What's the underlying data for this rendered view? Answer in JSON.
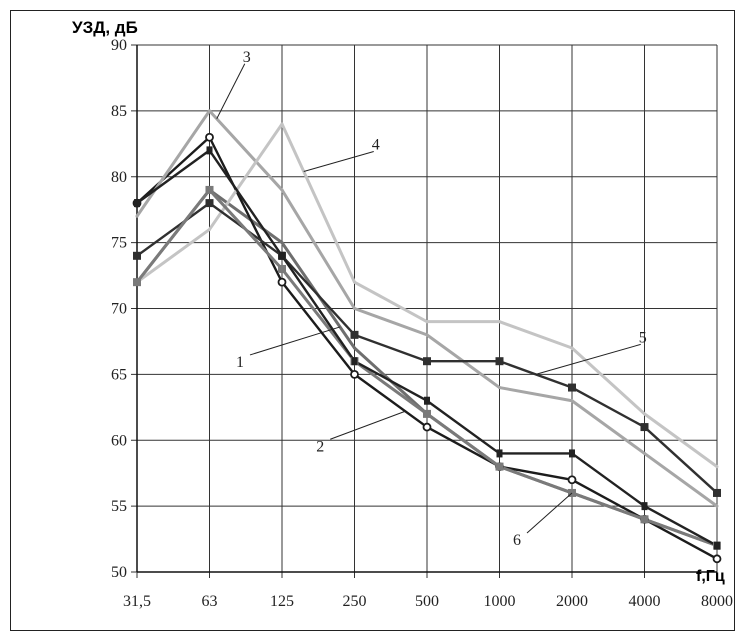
{
  "chart_data": {
    "type": "line",
    "title": "",
    "ylabel": "УЗД, дБ",
    "xlabel": "f,Гц",
    "categories": [
      "31,5",
      "63",
      "125",
      "250",
      "500",
      "1000",
      "2000",
      "4000",
      "8000"
    ],
    "ylim": [
      50,
      90
    ],
    "yticks": [
      50,
      55,
      60,
      65,
      70,
      75,
      80,
      85,
      90
    ],
    "grid": true,
    "series": [
      {
        "name": "1",
        "color": "#6e6e6e",
        "marker": "none",
        "values": [
          72,
          79,
          75,
          67,
          62,
          58,
          56,
          54,
          52
        ]
      },
      {
        "name": "2",
        "color": "#1c1c1c",
        "marker": "circle",
        "values": [
          78,
          83,
          72,
          65,
          61,
          58,
          57,
          54,
          51
        ]
      },
      {
        "name": "3",
        "color": "#a6a6a6",
        "marker": "none",
        "values": [
          77,
          85,
          79,
          70,
          68,
          64,
          63,
          59,
          55
        ]
      },
      {
        "name": "4",
        "color": "#c4c4c4",
        "marker": "none",
        "values": [
          72,
          76,
          84,
          72,
          69,
          69,
          67,
          62,
          58
        ]
      },
      {
        "name": "5",
        "color": "#303030",
        "marker": "square",
        "values": [
          74,
          78,
          74,
          68,
          66,
          66,
          64,
          61,
          56
        ]
      },
      {
        "name": "6",
        "color": "#7a7a7a",
        "marker": "square",
        "values": [
          72,
          79,
          73,
          66,
          62,
          58,
          56,
          54,
          52
        ]
      },
      {
        "name": "",
        "color": "#222222",
        "marker": "dash",
        "values": [
          78,
          82,
          74,
          66,
          63,
          59,
          59,
          55,
          52
        ]
      }
    ],
    "callouts": [
      {
        "label": "1",
        "series": 0,
        "point": 2.8
      },
      {
        "label": "2",
        "series": 1,
        "point": 3.7
      },
      {
        "label": "3",
        "series": 2,
        "point": 1.1
      },
      {
        "label": "4",
        "series": 3,
        "point": 2.3
      },
      {
        "label": "5",
        "series": 4,
        "point": 5.5
      },
      {
        "label": "6",
        "series": 5,
        "point": 6.0
      }
    ]
  }
}
